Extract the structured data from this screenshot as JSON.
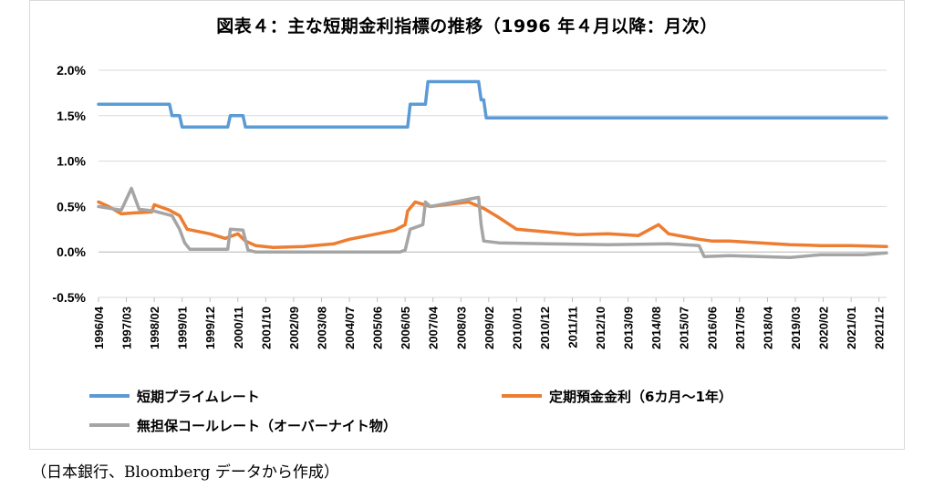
{
  "title": "図表４：主な短期金利指標の推移（1996 年４月以降：月次）",
  "source": "（日本銀行、Bloomberg データから作成）",
  "chart_data": {
    "type": "line",
    "title": "図表４：主な短期金利指標の推移（1996 年４月以降：月次）",
    "x_start": "1996/04",
    "x_end": "2022/03",
    "ylim": [
      -0.5,
      2.0
    ],
    "yticks": [
      -0.5,
      0.0,
      0.5,
      1.0,
      1.5,
      2.0
    ],
    "ytick_labels": [
      "-0.5%",
      "0.0%",
      "0.5%",
      "1.0%",
      "1.5%",
      "2.0%"
    ],
    "xtick_labels": [
      "1996/04",
      "1997/03",
      "1998/02",
      "1999/01",
      "1999/12",
      "2000/11",
      "2001/10",
      "2002/09",
      "2003/08",
      "2004/07",
      "2005/06",
      "2006/05",
      "2007/04",
      "2008/03",
      "2009/02",
      "2010/01",
      "2010/12",
      "2011/11",
      "2012/10",
      "2013/09",
      "2014/08",
      "2015/07",
      "2016/06",
      "2017/05",
      "2018/04",
      "2019/03",
      "2020/02",
      "2021/01",
      "2021/12"
    ],
    "grid": "horizontal",
    "legend_position": "bottom",
    "series": [
      {
        "name": "短期プライムレート",
        "color": "#5b9bd5",
        "points": [
          [
            "1996/04",
            1.625
          ],
          [
            "1998/08",
            1.625
          ],
          [
            "1998/09",
            1.5
          ],
          [
            "1998/12",
            1.5
          ],
          [
            "1999/01",
            1.375
          ],
          [
            "2000/07",
            1.375
          ],
          [
            "2000/08",
            1.5
          ],
          [
            "2001/01",
            1.5
          ],
          [
            "2001/02",
            1.375
          ],
          [
            "2006/06",
            1.375
          ],
          [
            "2006/07",
            1.625
          ],
          [
            "2007/01",
            1.625
          ],
          [
            "2007/02",
            1.875
          ],
          [
            "2008/10",
            1.875
          ],
          [
            "2008/11",
            1.675
          ],
          [
            "2008/12",
            1.675
          ],
          [
            "2009/01",
            1.475
          ],
          [
            "2022/03",
            1.475
          ]
        ]
      },
      {
        "name": "定期預金金利（6カ月～1年）",
        "color": "#ed7d31",
        "points": [
          [
            "1996/04",
            0.55
          ],
          [
            "1996/08",
            0.5
          ],
          [
            "1997/01",
            0.42
          ],
          [
            "1997/06",
            0.43
          ],
          [
            "1998/01",
            0.44
          ],
          [
            "1998/02",
            0.52
          ],
          [
            "1998/08",
            0.46
          ],
          [
            "1998/12",
            0.4
          ],
          [
            "1999/03",
            0.25
          ],
          [
            "1999/12",
            0.2
          ],
          [
            "2000/06",
            0.15
          ],
          [
            "2000/11",
            0.2
          ],
          [
            "2001/02",
            0.12
          ],
          [
            "2001/06",
            0.07
          ],
          [
            "2002/01",
            0.05
          ],
          [
            "2003/01",
            0.06
          ],
          [
            "2004/01",
            0.09
          ],
          [
            "2004/07",
            0.14
          ],
          [
            "2005/06",
            0.2
          ],
          [
            "2006/01",
            0.24
          ],
          [
            "2006/05",
            0.3
          ],
          [
            "2006/06",
            0.45
          ],
          [
            "2006/09",
            0.55
          ],
          [
            "2007/03",
            0.5
          ],
          [
            "2007/09",
            0.52
          ],
          [
            "2008/06",
            0.55
          ],
          [
            "2008/12",
            0.48
          ],
          [
            "2009/06",
            0.38
          ],
          [
            "2010/01",
            0.25
          ],
          [
            "2011/01",
            0.22
          ],
          [
            "2012/01",
            0.19
          ],
          [
            "2013/01",
            0.2
          ],
          [
            "2014/01",
            0.18
          ],
          [
            "2014/09",
            0.3
          ],
          [
            "2015/01",
            0.2
          ],
          [
            "2016/01",
            0.14
          ],
          [
            "2016/06",
            0.12
          ],
          [
            "2017/01",
            0.12
          ],
          [
            "2018/01",
            0.1
          ],
          [
            "2019/01",
            0.08
          ],
          [
            "2020/01",
            0.07
          ],
          [
            "2021/01",
            0.07
          ],
          [
            "2022/03",
            0.06
          ]
        ]
      },
      {
        "name": "無担保コールレート（オーバーナイト物）",
        "color": "#a5a5a5",
        "points": [
          [
            "1996/04",
            0.5
          ],
          [
            "1997/01",
            0.46
          ],
          [
            "1997/05",
            0.7
          ],
          [
            "1997/08",
            0.47
          ],
          [
            "1998/02",
            0.45
          ],
          [
            "1998/09",
            0.4
          ],
          [
            "1998/12",
            0.25
          ],
          [
            "1999/02",
            0.1
          ],
          [
            "1999/04",
            0.03
          ],
          [
            "2000/07",
            0.03
          ],
          [
            "2000/08",
            0.25
          ],
          [
            "2001/01",
            0.24
          ],
          [
            "2001/03",
            0.02
          ],
          [
            "2001/06",
            0.0
          ],
          [
            "2006/03",
            0.0
          ],
          [
            "2006/05",
            0.02
          ],
          [
            "2006/07",
            0.25
          ],
          [
            "2006/12",
            0.3
          ],
          [
            "2007/01",
            0.55
          ],
          [
            "2007/03",
            0.5
          ],
          [
            "2008/10",
            0.6
          ],
          [
            "2008/11",
            0.3
          ],
          [
            "2008/12",
            0.12
          ],
          [
            "2009/06",
            0.1
          ],
          [
            "2011/01",
            0.09
          ],
          [
            "2013/01",
            0.08
          ],
          [
            "2015/01",
            0.09
          ],
          [
            "2016/01",
            0.07
          ],
          [
            "2016/03",
            -0.05
          ],
          [
            "2017/01",
            -0.04
          ],
          [
            "2019/01",
            -0.06
          ],
          [
            "2020/01",
            -0.03
          ],
          [
            "2021/06",
            -0.03
          ],
          [
            "2022/03",
            -0.01
          ]
        ]
      }
    ]
  },
  "legend": [
    {
      "label": "短期プライムレート",
      "color": "#5b9bd5"
    },
    {
      "label": "定期預金金利（6カ月～1年）",
      "color": "#ed7d31"
    },
    {
      "label": "無担保コールレート（オーバーナイト物）",
      "color": "#a5a5a5"
    }
  ]
}
